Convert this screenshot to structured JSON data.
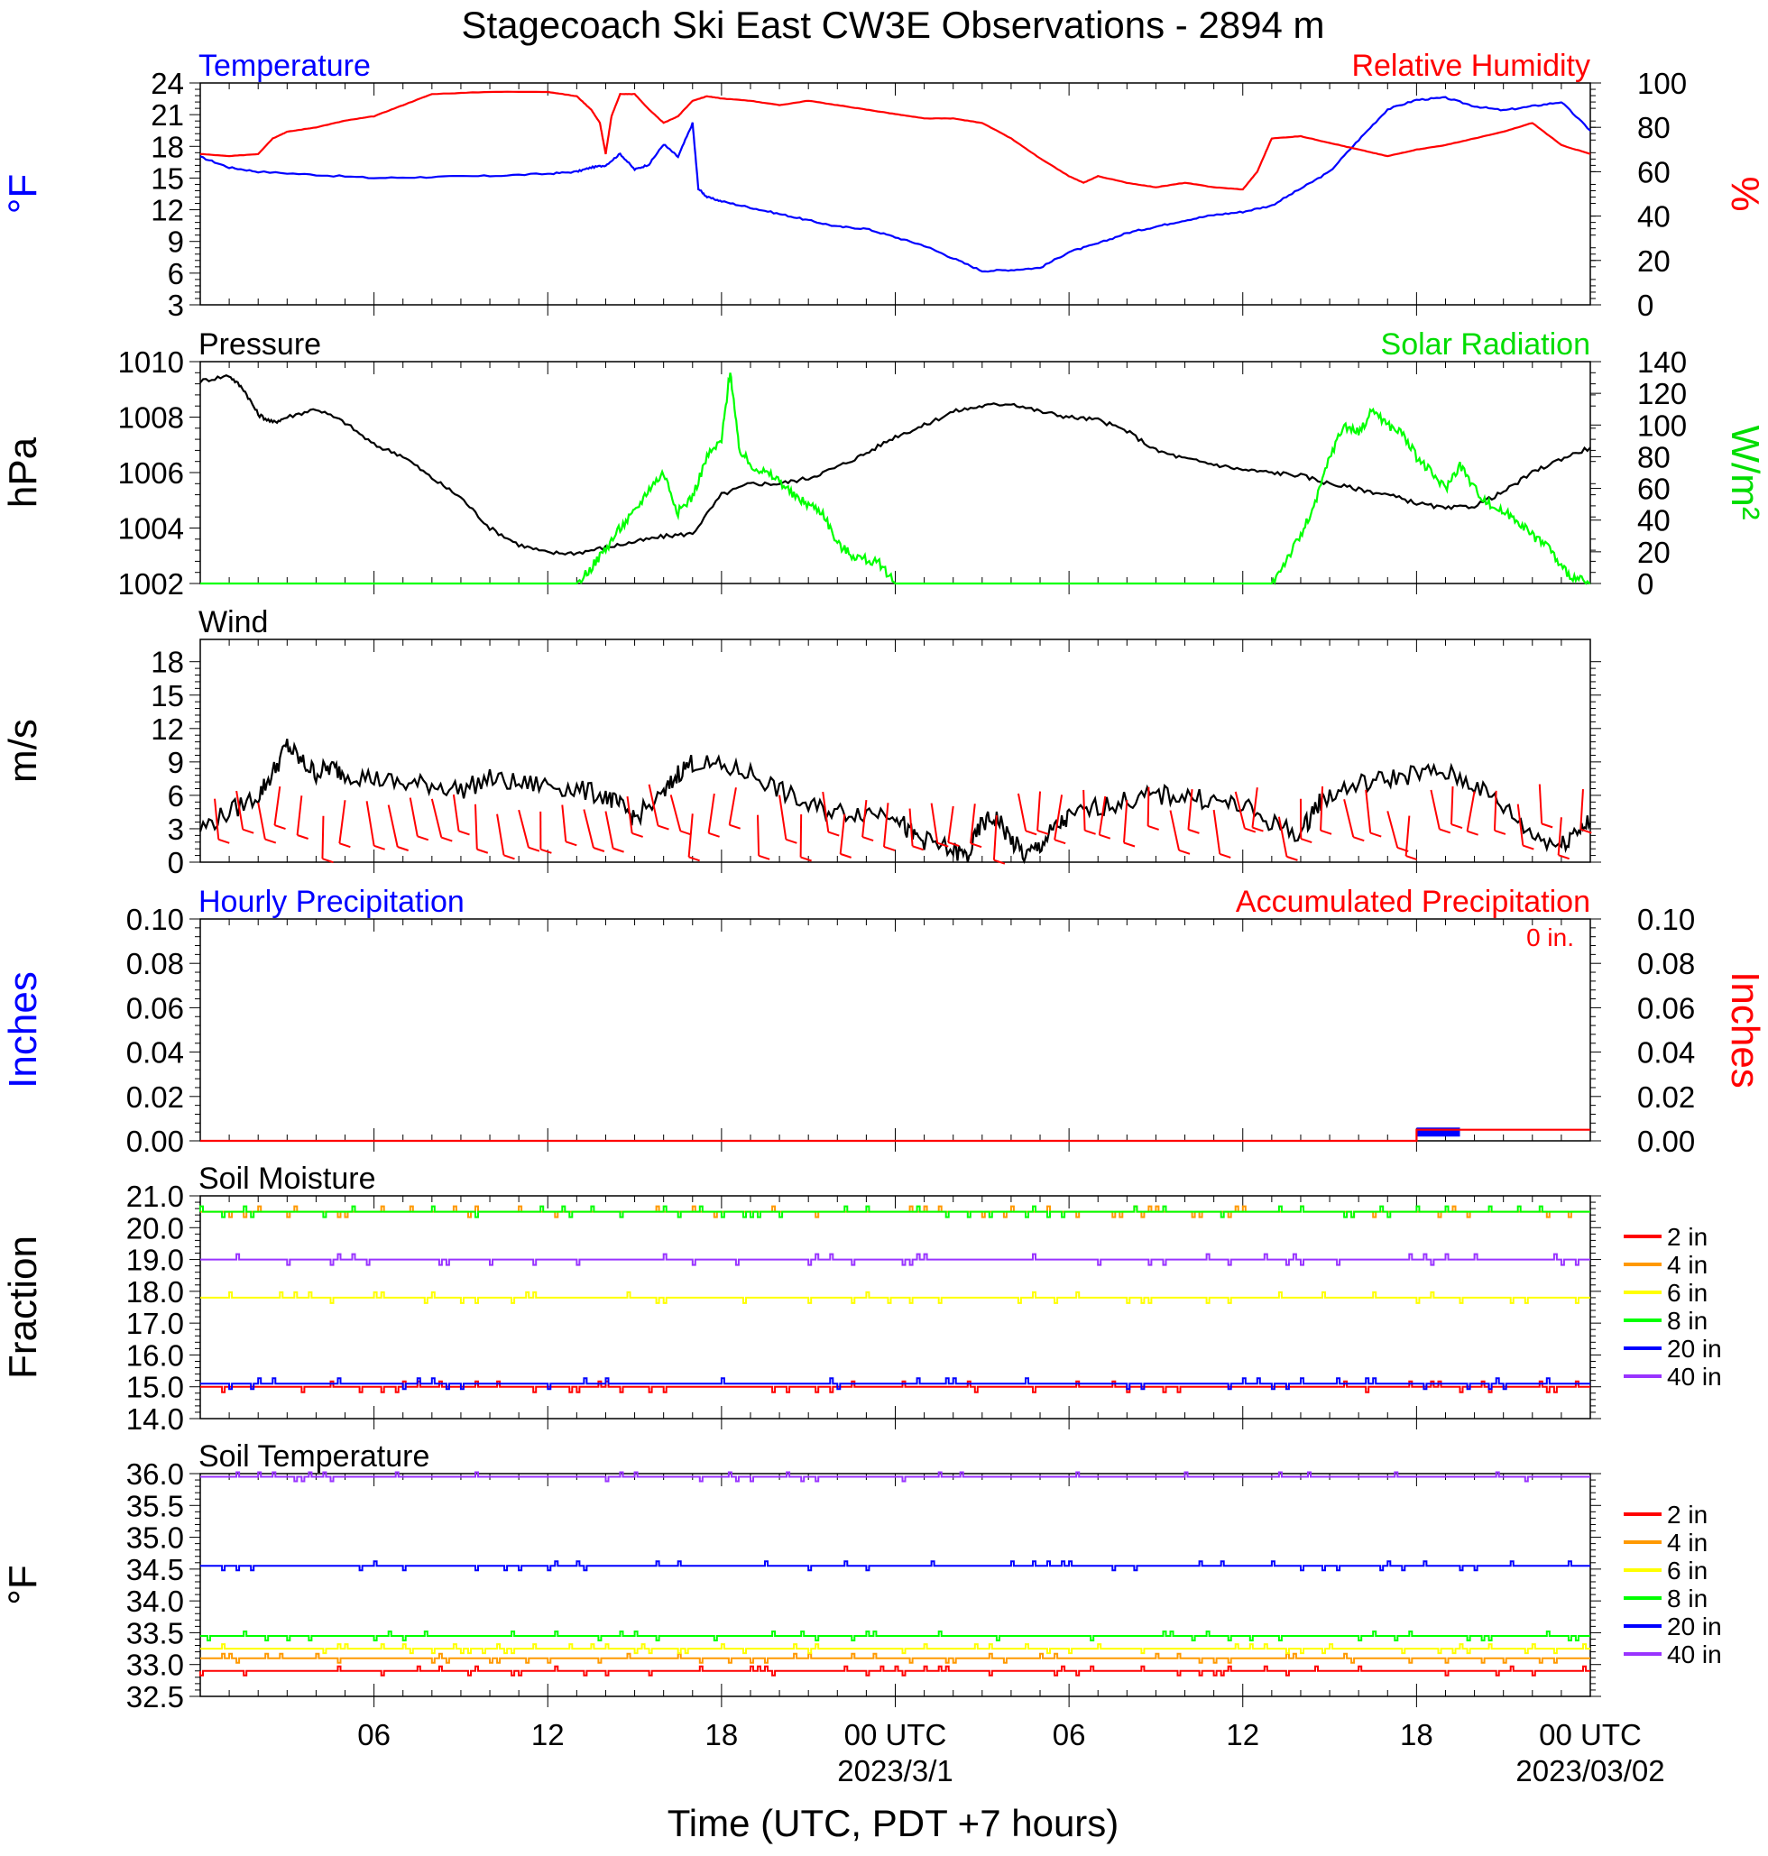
{
  "title": "Stagecoach Ski East CW3E Observations - 2894 m",
  "x_axis": {
    "tick_labels": [
      "06",
      "12",
      "18",
      "00 UTC",
      "06",
      "12",
      "18",
      "00 UTC"
    ],
    "date_labels": [
      "2023/3/1",
      "2023/03/02"
    ],
    "label": "Time (UTC, PDT +7 hours)",
    "range_hours": [
      0,
      48
    ]
  },
  "colors": {
    "blue": "#0000ff",
    "red": "#ff0000",
    "green": "#00ff00",
    "black": "#000000",
    "orange": "#ff9900",
    "yellow": "#ffff00",
    "purple": "#9933ff"
  },
  "chart_data": [
    {
      "type": "line",
      "panel": "temperature_rh",
      "left_title": "Temperature",
      "right_title": "Relative Humidity",
      "ylabel_left": "°F",
      "ylabel_right": "%",
      "ylim_left": [
        3,
        24
      ],
      "ylim_right": [
        0,
        100
      ],
      "yticks_left": [
        "3",
        "6",
        "9",
        "12",
        "15",
        "18",
        "21",
        "24"
      ],
      "yticks_right": [
        "0",
        "20",
        "40",
        "60",
        "80",
        "100"
      ],
      "series": [
        {
          "name": "Temperature",
          "axis": "left",
          "color": "#0000ff",
          "x": [
            0,
            1,
            2,
            4,
            6,
            8,
            10,
            12,
            13,
            13.5,
            14,
            14.5,
            15,
            15.5,
            16,
            16.5,
            17,
            17.2,
            17.5,
            18,
            19,
            20,
            21,
            22,
            23,
            24,
            25,
            26,
            27,
            28,
            29,
            30,
            31,
            32,
            33,
            34,
            35,
            36,
            37,
            38,
            39,
            40,
            41,
            42,
            43,
            44,
            45,
            46,
            47,
            48
          ],
          "y": [
            17,
            16,
            15.6,
            15.3,
            15.0,
            15.1,
            15.2,
            15.4,
            15.6,
            16.0,
            16.2,
            17.3,
            15.8,
            16.3,
            18.2,
            17,
            20.2,
            14,
            13.2,
            12.8,
            12.2,
            11.6,
            11.0,
            10.4,
            10.2,
            9.4,
            8.6,
            7.4,
            6.2,
            6.3,
            6.5,
            8.0,
            8.8,
            9.8,
            10.4,
            11.0,
            11.5,
            11.8,
            12.4,
            14.0,
            15.6,
            18.6,
            21.5,
            22.4,
            22.6,
            21.8,
            21.4,
            21.8,
            22.2,
            19.5
          ]
        },
        {
          "name": "Relative Humidity",
          "axis": "right",
          "color": "#ff0000",
          "x": [
            0,
            1,
            2,
            2.5,
            3,
            4,
            5,
            6,
            7,
            8,
            10,
            12,
            13,
            13.5,
            13.8,
            14,
            14.2,
            14.5,
            15,
            15.5,
            16,
            16.5,
            17,
            17.5,
            18,
            19,
            20,
            21,
            22,
            23,
            24,
            25,
            26,
            27,
            28,
            29,
            30,
            30.5,
            31,
            32,
            33,
            34,
            35,
            36,
            36.5,
            37,
            38,
            39,
            40,
            41,
            42,
            43,
            44,
            45,
            46,
            47,
            48
          ],
          "y": [
            68,
            67,
            68,
            75,
            78,
            80,
            83,
            85,
            90,
            95,
            96,
            96,
            94,
            88,
            82,
            68,
            85,
            95,
            95,
            88,
            82,
            85,
            92,
            94,
            93,
            92,
            90,
            92,
            90,
            88,
            86,
            84,
            84,
            82,
            75,
            66,
            58,
            55,
            58,
            55,
            53,
            55,
            53,
            52,
            60,
            75,
            76,
            73,
            70,
            67,
            70,
            72,
            75,
            78,
            82,
            72,
            68
          ]
        }
      ]
    },
    {
      "type": "line",
      "panel": "pressure_solar",
      "left_title": "Pressure",
      "right_title": "Solar Radiation",
      "ylabel_left": "hPa",
      "ylabel_right": "W/m²",
      "ylim_left": [
        1002,
        1010
      ],
      "ylim_right": [
        0,
        140
      ],
      "yticks_left": [
        "1002",
        "1004",
        "1006",
        "1008",
        "1010"
      ],
      "yticks_right": [
        "0",
        "20",
        "40",
        "60",
        "80",
        "100",
        "120",
        "140"
      ],
      "series": [
        {
          "name": "Pressure",
          "axis": "left",
          "color": "#000000",
          "x": [
            0,
            1,
            1.5,
            2,
            2.5,
            3,
            4,
            5,
            6,
            7,
            8,
            9,
            10,
            11,
            12,
            13,
            14,
            15,
            16,
            17,
            18,
            19,
            20,
            21,
            22,
            23,
            24,
            25,
            26,
            27,
            28,
            29,
            30,
            31,
            32,
            33,
            34,
            35,
            36,
            37,
            38,
            39,
            40,
            41,
            42,
            43,
            44,
            45,
            46,
            47,
            48
          ],
          "y": [
            1009.3,
            1009.5,
            1009.0,
            1008.1,
            1007.8,
            1008.0,
            1008.3,
            1007.8,
            1007.0,
            1006.6,
            1005.8,
            1005.1,
            1004.0,
            1003.4,
            1003.1,
            1003.1,
            1003.3,
            1003.5,
            1003.7,
            1003.8,
            1005.2,
            1005.6,
            1005.6,
            1005.8,
            1006.2,
            1006.7,
            1007.3,
            1007.7,
            1008.2,
            1008.4,
            1008.5,
            1008.2,
            1008.0,
            1007.9,
            1007.5,
            1006.8,
            1006.5,
            1006.3,
            1006.1,
            1006.0,
            1005.9,
            1005.6,
            1005.4,
            1005.2,
            1004.9,
            1004.7,
            1004.8,
            1005.3,
            1006.0,
            1006.5,
            1006.9
          ]
        },
        {
          "name": "Solar Radiation",
          "axis": "right",
          "color": "#00ff00",
          "x": [
            0,
            13,
            13.5,
            14,
            14.5,
            15,
            15.5,
            16,
            16.5,
            17,
            17.5,
            18,
            18.3,
            18.6,
            19,
            19.5,
            20,
            20.5,
            21,
            21.5,
            22,
            22.5,
            23,
            23.5,
            24,
            25,
            26,
            37,
            37.5,
            38,
            38.5,
            39,
            39.5,
            40,
            40.5,
            41,
            41.5,
            42,
            42.5,
            43,
            43.5,
            44,
            44.5,
            45,
            45.5,
            46,
            46.5,
            47,
            47.5,
            48
          ],
          "y": [
            0,
            0,
            10,
            22,
            35,
            45,
            60,
            70,
            45,
            55,
            80,
            90,
            135,
            85,
            75,
            70,
            65,
            55,
            50,
            45,
            25,
            18,
            15,
            12,
            0,
            0,
            0,
            0,
            15,
            30,
            50,
            80,
            100,
            95,
            110,
            100,
            95,
            80,
            70,
            60,
            75,
            60,
            50,
            45,
            40,
            30,
            25,
            10,
            3,
            0
          ]
        }
      ]
    },
    {
      "type": "line",
      "panel": "wind",
      "left_title": "Wind",
      "ylabel_left": "m/s",
      "ylim_left": [
        0,
        20
      ],
      "yticks_left": [
        "0",
        "3",
        "6",
        "9",
        "12",
        "15",
        "18"
      ],
      "series": [
        {
          "name": "Wind",
          "axis": "left",
          "color": "#000000",
          "x": [
            0,
            1,
            2,
            2.5,
            3,
            3.5,
            4,
            4.5,
            5,
            6,
            7,
            8,
            9,
            10,
            11,
            12,
            13,
            14,
            14.5,
            15,
            16,
            16.5,
            17,
            18,
            19,
            20,
            21,
            22,
            23,
            24,
            24.5,
            25,
            26,
            26.5,
            27,
            27.5,
            28,
            28.5,
            29,
            29.5,
            30,
            31,
            32,
            33,
            34,
            35,
            36,
            37,
            38,
            38.5,
            39,
            40,
            41,
            42,
            43,
            44,
            45,
            46,
            47,
            47.5,
            48
          ],
          "y": [
            3,
            4.5,
            6,
            8,
            10.5,
            9,
            8,
            8.5,
            8,
            7.5,
            7,
            7,
            6.5,
            7.5,
            7,
            7,
            6.5,
            6,
            5,
            4,
            6,
            8,
            9,
            8.5,
            8,
            6.5,
            5,
            4.5,
            4.5,
            4.5,
            2.5,
            2,
            1,
            0.5,
            3.5,
            4,
            2,
            0.5,
            1.5,
            3,
            4,
            5,
            5.5,
            6,
            6,
            5.5,
            5,
            3.5,
            2.5,
            5,
            6,
            7,
            7.5,
            8,
            8,
            7,
            5,
            2.5,
            1.5,
            3,
            3.5
          ]
        }
      ],
      "barbs": "red wind barbs along series"
    },
    {
      "type": "line",
      "panel": "precipitation",
      "left_title": "Hourly Precipitation",
      "right_title": "Accumulated Precipitation",
      "annotation": "0 in.",
      "ylabel_left": "Inches",
      "ylabel_right": "Inches",
      "ylim_left": [
        0,
        0.1
      ],
      "ylim_right": [
        0,
        0.1
      ],
      "yticks_left": [
        "0.00",
        "0.02",
        "0.04",
        "0.06",
        "0.08",
        "0.10"
      ],
      "yticks_right": [
        "0.00",
        "0.02",
        "0.04",
        "0.06",
        "0.08",
        "0.10"
      ],
      "series": [
        {
          "name": "Hourly Precipitation",
          "axis": "left",
          "color": "#0000ff",
          "x": [
            42,
            43.5
          ],
          "y": [
            0.004,
            0.004
          ]
        },
        {
          "name": "Accumulated Precipitation",
          "axis": "right",
          "color": "#ff0000",
          "x": [
            0,
            42,
            42,
            48
          ],
          "y": [
            0,
            0,
            0.005,
            0.005
          ]
        }
      ]
    },
    {
      "type": "line",
      "panel": "soil_moisture",
      "left_title": "Soil Moisture",
      "ylabel_left": "Fraction",
      "ylim_left": [
        14.0,
        21.0
      ],
      "yticks_left": [
        "14.0",
        "15.0",
        "16.0",
        "17.0",
        "18.0",
        "19.0",
        "20.0",
        "21.0"
      ],
      "series": [
        {
          "name": "2 in",
          "color": "#ff0000",
          "value": 15.0
        },
        {
          "name": "4 in",
          "color": "#ff9900",
          "value": 20.5
        },
        {
          "name": "6 in",
          "color": "#ffff00",
          "value": 17.8
        },
        {
          "name": "8 in",
          "color": "#00ff00",
          "value": 20.5
        },
        {
          "name": "20 in",
          "color": "#0000ff",
          "value": 15.1
        },
        {
          "name": "40 in",
          "color": "#9933ff",
          "value": 19.0
        }
      ]
    },
    {
      "type": "line",
      "panel": "soil_temperature",
      "left_title": "Soil Temperature",
      "ylabel_left": "°F",
      "ylim_left": [
        32.5,
        36.0
      ],
      "yticks_left": [
        "32.5",
        "33.0",
        "33.5",
        "34.0",
        "34.5",
        "35.0",
        "35.5",
        "36.0"
      ],
      "series": [
        {
          "name": "2 in",
          "color": "#ff0000",
          "value": 32.9
        },
        {
          "name": "4 in",
          "color": "#ff9900",
          "value": 33.1
        },
        {
          "name": "6 in",
          "color": "#ffff00",
          "value": 33.25
        },
        {
          "name": "8 in",
          "color": "#00ff00",
          "value": 33.45
        },
        {
          "name": "20 in",
          "color": "#0000ff",
          "value": 34.55
        },
        {
          "name": "40 in",
          "color": "#9933ff",
          "value": 35.95
        }
      ]
    }
  ]
}
